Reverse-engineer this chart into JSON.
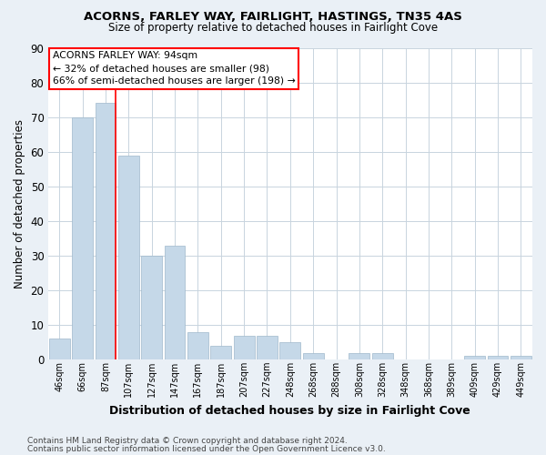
{
  "title_line1": "ACORNS, FARLEY WAY, FAIRLIGHT, HASTINGS, TN35 4AS",
  "title_line2": "Size of property relative to detached houses in Fairlight Cove",
  "xlabel": "Distribution of detached houses by size in Fairlight Cove",
  "ylabel": "Number of detached properties",
  "footnote1": "Contains HM Land Registry data © Crown copyright and database right 2024.",
  "footnote2": "Contains public sector information licensed under the Open Government Licence v3.0.",
  "categories": [
    "46sqm",
    "66sqm",
    "87sqm",
    "107sqm",
    "127sqm",
    "147sqm",
    "167sqm",
    "187sqm",
    "207sqm",
    "227sqm",
    "248sqm",
    "268sqm",
    "288sqm",
    "308sqm",
    "328sqm",
    "348sqm",
    "368sqm",
    "389sqm",
    "409sqm",
    "429sqm",
    "449sqm"
  ],
  "values": [
    6,
    70,
    74,
    59,
    30,
    33,
    8,
    4,
    7,
    7,
    5,
    2,
    0,
    2,
    2,
    0,
    0,
    0,
    1,
    1,
    1
  ],
  "bar_color": "#c5d8e8",
  "bar_edge_color": "#a0b8cc",
  "red_line_x": 2.45,
  "annotation_text": "ACORNS FARLEY WAY: 94sqm\n← 32% of detached houses are smaller (98)\n66% of semi-detached houses are larger (198) →",
  "ylim": [
    0,
    90
  ],
  "yticks": [
    0,
    10,
    20,
    30,
    40,
    50,
    60,
    70,
    80,
    90
  ],
  "bg_color": "#eaf0f6",
  "plot_bg_color": "#ffffff",
  "grid_color": "#c8d4de"
}
